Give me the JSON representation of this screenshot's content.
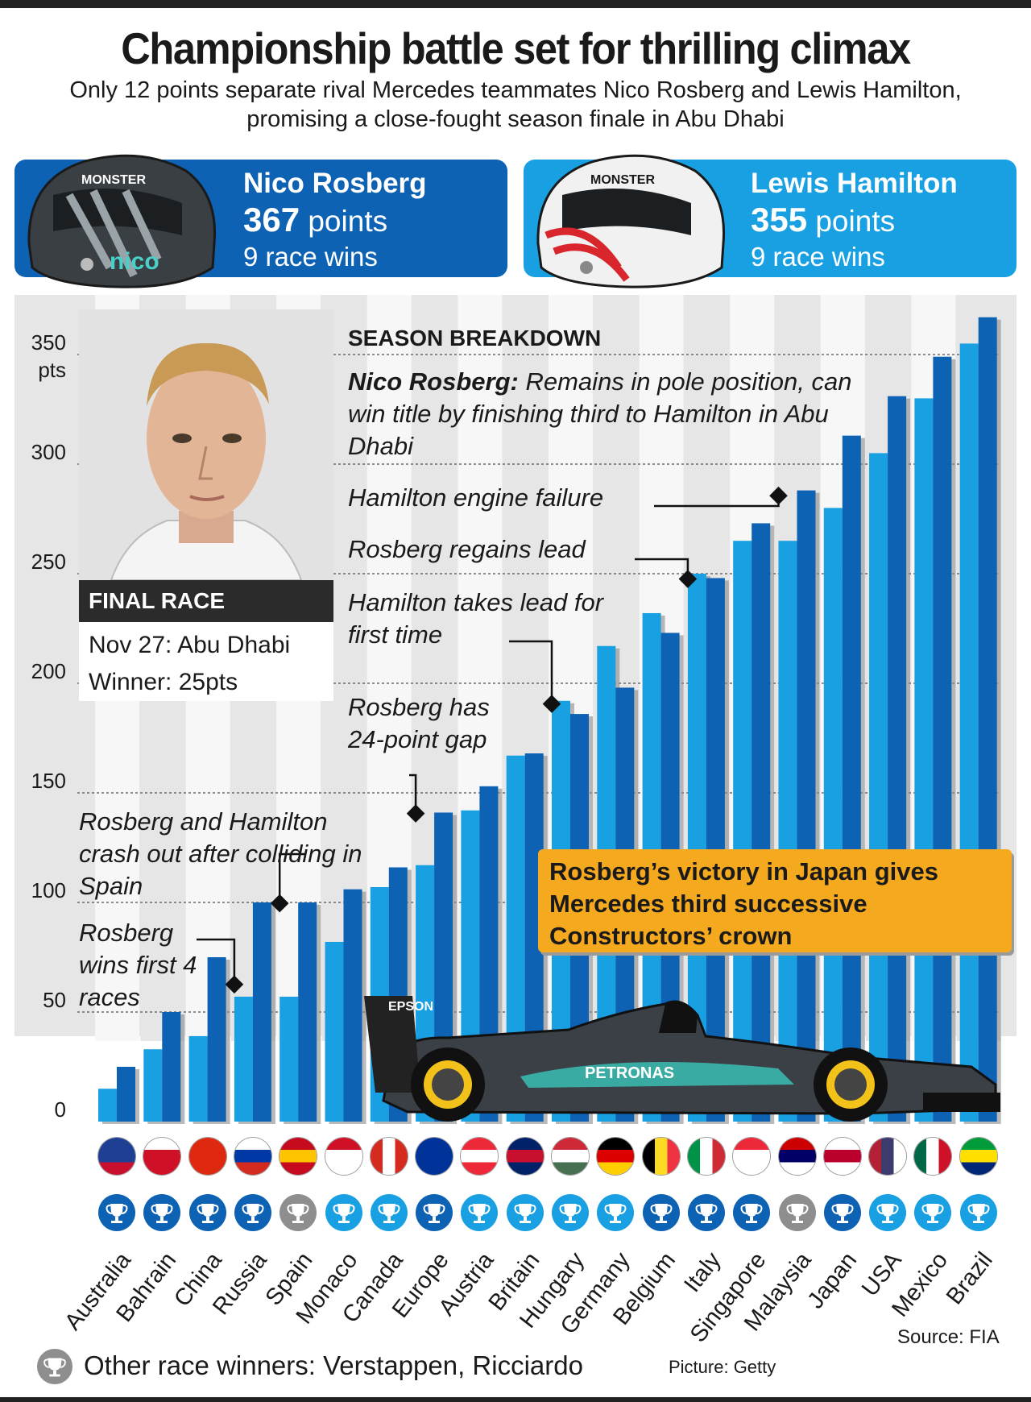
{
  "title": "Championship battle set for thrilling climax",
  "subtitle": "Only 12 points separate rival Mercedes teammates Nico Rosberg and Lewis Hamilton, promising a close-fought season finale in Abu Dhabi",
  "drivers": {
    "rosberg": {
      "name": "Nico Rosberg",
      "points_num": "367",
      "points_word": "points",
      "wins": "9 race wins",
      "helmet_text": "nico",
      "helmet_sponsor": "MONSTER",
      "color": "#0d62b3"
    },
    "hamilton": {
      "name": "Lewis Hamilton",
      "points_num": "355",
      "points_word": "points",
      "wins": "9 race wins",
      "helmet_sponsor": "MONSTER",
      "color": "#18a0e2"
    }
  },
  "final_race": {
    "heading": "FINAL RACE",
    "line1": "Nov 27: Abu Dhabi",
    "line2": "Winner: 25pts"
  },
  "season_breakdown": {
    "heading": "SEASON BREAKDOWN",
    "rosberg_label": "Nico Rosberg:",
    "rosberg_text": "Remains in pole position, can win title by finishing third to Hamilton in Abu Dhabi"
  },
  "annotations": {
    "engine": "Hamilton engine failure",
    "regains": "Rosberg regains lead",
    "takes_lead": "Hamilton takes lead for first time",
    "gap": "Rosberg has 24-point gap",
    "crash": "Rosberg and Hamilton crash out after colliding in Spain",
    "wins4": "Rosberg wins first 4 races"
  },
  "callout": "Rosberg’s victory in Japan gives Mercedes third successive Constructors’ crown",
  "car": {
    "sponsor1": "EPSON",
    "sponsor2": "PETRONAS"
  },
  "legend": "Other race winners: Verstappen, Ricciardo",
  "source": "Source: FIA",
  "credit": "Picture: Getty",
  "colors": {
    "hamilton": "#18a0e2",
    "rosberg": "#0d62b3",
    "other": "#8e8e8e",
    "background": "#e6e6e6"
  },
  "winner_codes": {
    "R": "Rosberg",
    "H": "Hamilton",
    "O": "Other"
  },
  "chart_data": {
    "type": "bar",
    "title": "",
    "xlabel": "",
    "ylabel": "pts",
    "ylim": [
      0,
      360
    ],
    "yticks": [
      0,
      50,
      100,
      150,
      200,
      250,
      300,
      350
    ],
    "categories": [
      "Australia",
      "Bahrain",
      "China",
      "Russia",
      "Spain",
      "Monaco",
      "Canada",
      "Europe",
      "Austria",
      "Britain",
      "Hungary",
      "Germany",
      "Belgium",
      "Italy",
      "Singapore",
      "Malaysia",
      "Japan",
      "USA",
      "Mexico",
      "Brazil"
    ],
    "series": [
      {
        "name": "Lewis Hamilton",
        "values": [
          15,
          33,
          39,
          57,
          57,
          82,
          107,
          117,
          142,
          167,
          192,
          217,
          232,
          250,
          265,
          265,
          280,
          305,
          330,
          355
        ]
      },
      {
        "name": "Nico Rosberg",
        "values": [
          25,
          50,
          75,
          100,
          100,
          106,
          116,
          141,
          153,
          168,
          186,
          198,
          223,
          248,
          273,
          288,
          313,
          331,
          349,
          367
        ]
      }
    ],
    "race_winners": [
      "R",
      "R",
      "R",
      "R",
      "O",
      "H",
      "H",
      "R",
      "H",
      "H",
      "H",
      "H",
      "R",
      "R",
      "R",
      "O",
      "R",
      "H",
      "H",
      "H"
    ],
    "flag_icons": [
      "australia-flag",
      "bahrain-flag",
      "china-flag",
      "russia-flag",
      "spain-flag",
      "monaco-flag",
      "canada-flag",
      "europe-flag",
      "austria-flag",
      "britain-flag",
      "hungary-flag",
      "germany-flag",
      "belgium-flag",
      "italy-flag",
      "singapore-flag",
      "malaysia-flag",
      "japan-flag",
      "usa-flag",
      "mexico-flag",
      "brazil-flag"
    ]
  }
}
